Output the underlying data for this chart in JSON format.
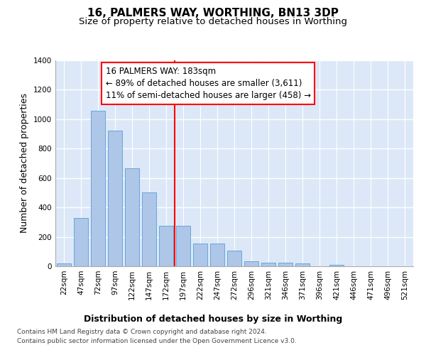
{
  "title": "16, PALMERS WAY, WORTHING, BN13 3DP",
  "subtitle": "Size of property relative to detached houses in Worthing",
  "xlabel": "Distribution of detached houses by size in Worthing",
  "ylabel": "Number of detached properties",
  "footer_line1": "Contains HM Land Registry data © Crown copyright and database right 2024.",
  "footer_line2": "Contains public sector information licensed under the Open Government Licence v3.0.",
  "bar_labels": [
    "22sqm",
    "47sqm",
    "72sqm",
    "97sqm",
    "122sqm",
    "147sqm",
    "172sqm",
    "197sqm",
    "222sqm",
    "247sqm",
    "272sqm",
    "296sqm",
    "321sqm",
    "346sqm",
    "371sqm",
    "396sqm",
    "421sqm",
    "446sqm",
    "471sqm",
    "496sqm",
    "521sqm"
  ],
  "bar_values": [
    20,
    330,
    1055,
    920,
    665,
    500,
    275,
    275,
    155,
    155,
    105,
    35,
    25,
    25,
    18,
    0,
    12,
    0,
    0,
    0,
    0
  ],
  "bar_color": "#aec6e8",
  "bar_edge_color": "#5a9fd4",
  "background_color": "#dce8f8",
  "grid_color": "#ffffff",
  "ylim": [
    0,
    1400
  ],
  "yticks": [
    0,
    200,
    400,
    600,
    800,
    1000,
    1200,
    1400
  ],
  "vline_position": 6.5,
  "vline_color": "red",
  "annotation_text": "16 PALMERS WAY: 183sqm\n← 89% of detached houses are smaller (3,611)\n11% of semi-detached houses are larger (458) →",
  "title_fontsize": 11,
  "subtitle_fontsize": 9.5,
  "axis_label_fontsize": 9,
  "tick_fontsize": 7.5,
  "annotation_fontsize": 8.5,
  "footer_fontsize": 6.5
}
